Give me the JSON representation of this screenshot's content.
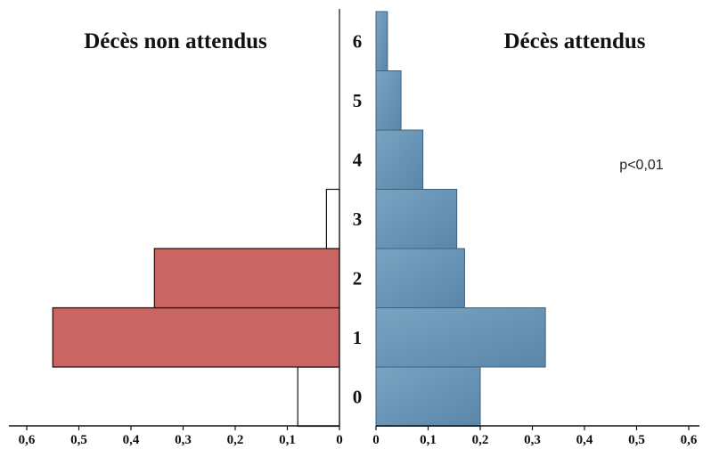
{
  "chart_data": {
    "type": "bar",
    "orientation": "horizontal-butterfly",
    "categories": [
      "0",
      "1",
      "2",
      "3",
      "4",
      "5",
      "6"
    ],
    "series": [
      {
        "name": "Décès non attendus",
        "side": "left",
        "color": "#c96663",
        "values": [
          0.08,
          0.55,
          0.355,
          0.025,
          0,
          0,
          0
        ]
      },
      {
        "name": "Décès attendus",
        "side": "right",
        "color": "#6390b3",
        "values": [
          0.2,
          0.325,
          0.17,
          0.155,
          0.09,
          0.048,
          0.022
        ]
      }
    ],
    "xlim": [
      0,
      0.6
    ],
    "ticks": [
      "0",
      "0,1",
      "0,2",
      "0,3",
      "0,4",
      "0,5",
      "0,6"
    ],
    "annotation": "p<0,01",
    "grid": false
  }
}
